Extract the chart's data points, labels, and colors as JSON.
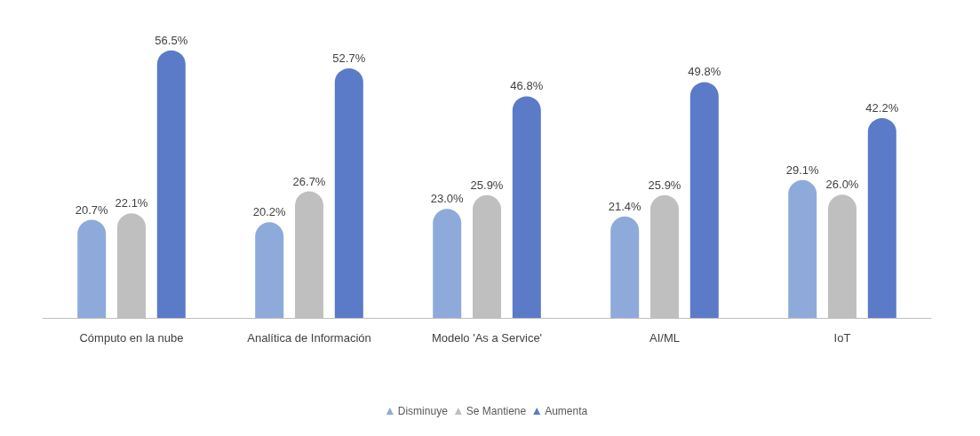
{
  "chart_data": {
    "type": "bar",
    "categories": [
      "Cómputo en la nube",
      "Analítica de Información",
      "Modelo 'As a Service'",
      "AI/ML",
      "IoT"
    ],
    "series": [
      {
        "name": "Disminuye",
        "color": "#8eaadb",
        "values": [
          20.7,
          20.2,
          23.0,
          21.4,
          29.1
        ],
        "value_labels": [
          "20.7%",
          "20.2%",
          "23.0%",
          "21.4%",
          "29.1%"
        ]
      },
      {
        "name": "Se Mantiene",
        "color": "#bfbfbf",
        "values": [
          22.1,
          26.7,
          25.9,
          25.9,
          26.0
        ],
        "value_labels": [
          "22.1%",
          "26.7%",
          "25.9%",
          "25.9%",
          "26.0%"
        ]
      },
      {
        "name": "Aumenta",
        "color": "#5b7bc8",
        "values": [
          56.5,
          52.7,
          46.8,
          49.8,
          42.2
        ],
        "value_labels": [
          "56.5%",
          "52.7%",
          "46.8%",
          "49.8%",
          "42.2%"
        ]
      }
    ],
    "legend": "bottom"
  }
}
